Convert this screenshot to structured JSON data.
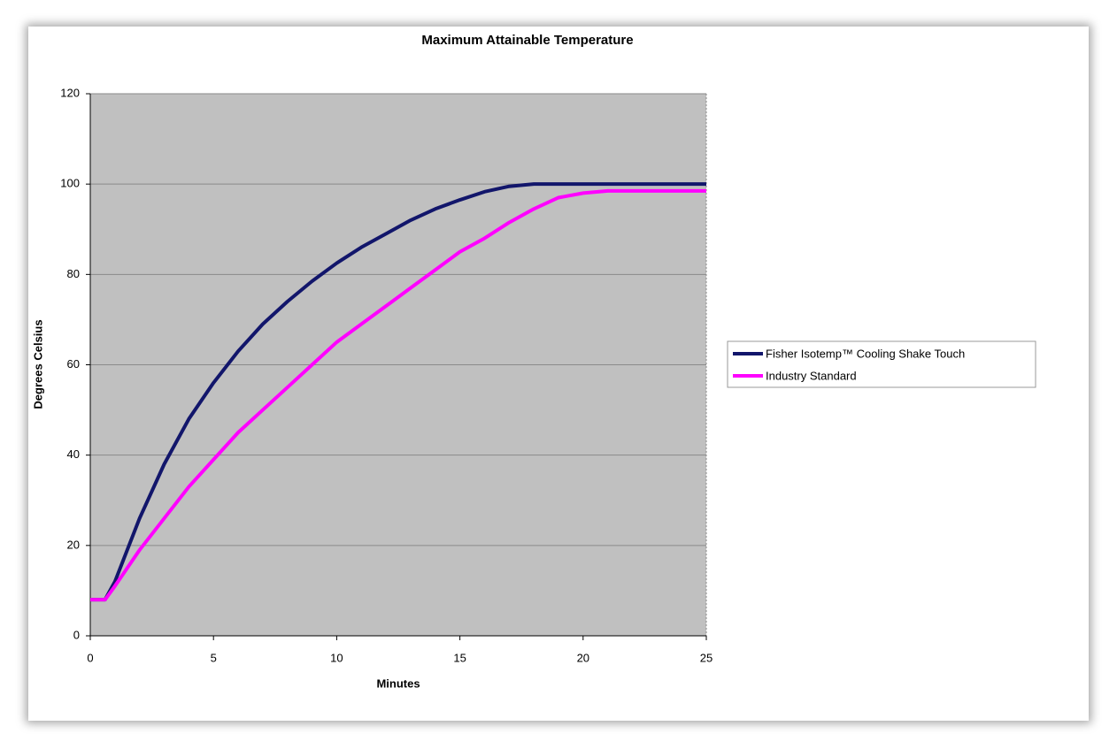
{
  "chart_data": {
    "type": "line",
    "title": "Maximum Attainable Temperature",
    "x_label": "Minutes",
    "y_label": "Degrees Celsius",
    "xlim": [
      0,
      25
    ],
    "xticks": [
      0,
      5,
      10,
      15,
      20,
      25
    ],
    "ylim": [
      0,
      120
    ],
    "yticks": [
      0,
      20,
      40,
      60,
      80,
      100,
      120
    ],
    "grid": true,
    "legend": "right",
    "plot_background": "#c0c0c0",
    "series": [
      {
        "name": "Fisher Isotemp™ Cooling Shake Touch",
        "color": "#12166b",
        "x": [
          0,
          0.6,
          1,
          2,
          3,
          4,
          5,
          6,
          7,
          8,
          9,
          10,
          11,
          12,
          13,
          14,
          15,
          16,
          17,
          18,
          20,
          25
        ],
        "values": [
          8,
          8,
          12,
          26,
          38,
          48,
          56,
          63,
          69,
          74,
          78.5,
          82.5,
          86,
          89,
          92,
          94.5,
          96.5,
          98.3,
          99.5,
          100,
          100,
          100
        ]
      },
      {
        "name": "Industry Standard",
        "color": "#ff00ff",
        "x": [
          0,
          0.6,
          1,
          2,
          3,
          4,
          5,
          6,
          7,
          8,
          9,
          10,
          11,
          12,
          13,
          14,
          15,
          16,
          17,
          18,
          19,
          20,
          21,
          25
        ],
        "values": [
          8,
          8,
          11,
          19,
          26,
          33,
          39,
          45,
          50,
          55,
          60,
          65,
          69,
          73,
          77,
          81,
          85,
          88,
          91.5,
          94.5,
          97,
          98,
          98.5,
          98.5
        ]
      }
    ]
  }
}
